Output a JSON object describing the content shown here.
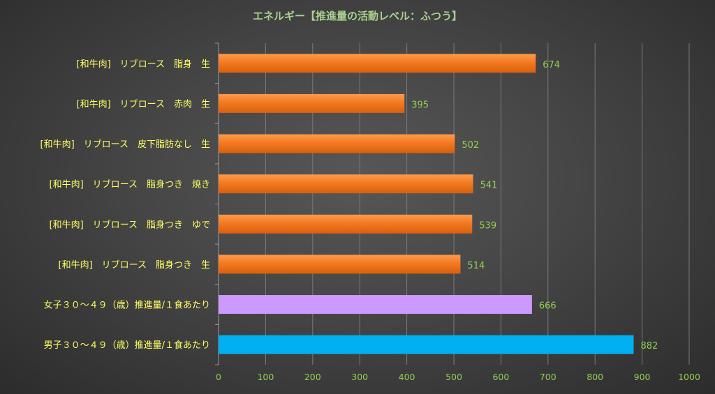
{
  "chart_data": {
    "type": "bar",
    "orientation": "horizontal",
    "title": "エネルギー【推進量の活動レベル：ふつう】",
    "categories": [
      "[和牛肉]　リブロース　脂身　生",
      "[和牛肉]　リブロース　赤肉　生",
      "[和牛肉]　リブロース　皮下脂肪なし　生",
      "[和牛肉]　リブロース　脂身つき　焼き",
      "[和牛肉]　リブロース　脂身つき　ゆで",
      "[和牛肉]　リブロース　脂身つき　生",
      "女子３０～４９（歳）推進量/１食あたり",
      "男子３０～４９（歳）推進量/１食あたり"
    ],
    "values": [
      674,
      395,
      502,
      541,
      539,
      514,
      666,
      882
    ],
    "value_labels": [
      "674",
      "395",
      "502",
      "541",
      "539",
      "514",
      "666",
      "882"
    ],
    "bar_colors": [
      "#f07820",
      "#f07820",
      "#f07820",
      "#f07820",
      "#f07820",
      "#f07820",
      "#cc99ff",
      "#00b0f0"
    ],
    "xlim": [
      0,
      1000
    ],
    "x_ticks": [
      "0",
      "100",
      "200",
      "300",
      "400",
      "500",
      "600",
      "700",
      "800",
      "900",
      "1000"
    ],
    "grid": "vertical",
    "legend": "none"
  },
  "colors": {
    "title": "#a9d18e",
    "category_text": "#ffff66",
    "tick_text": "#92d050",
    "value_text": "#92d050",
    "grid": "#7a7a7a",
    "axis": "#9a9a9a"
  }
}
